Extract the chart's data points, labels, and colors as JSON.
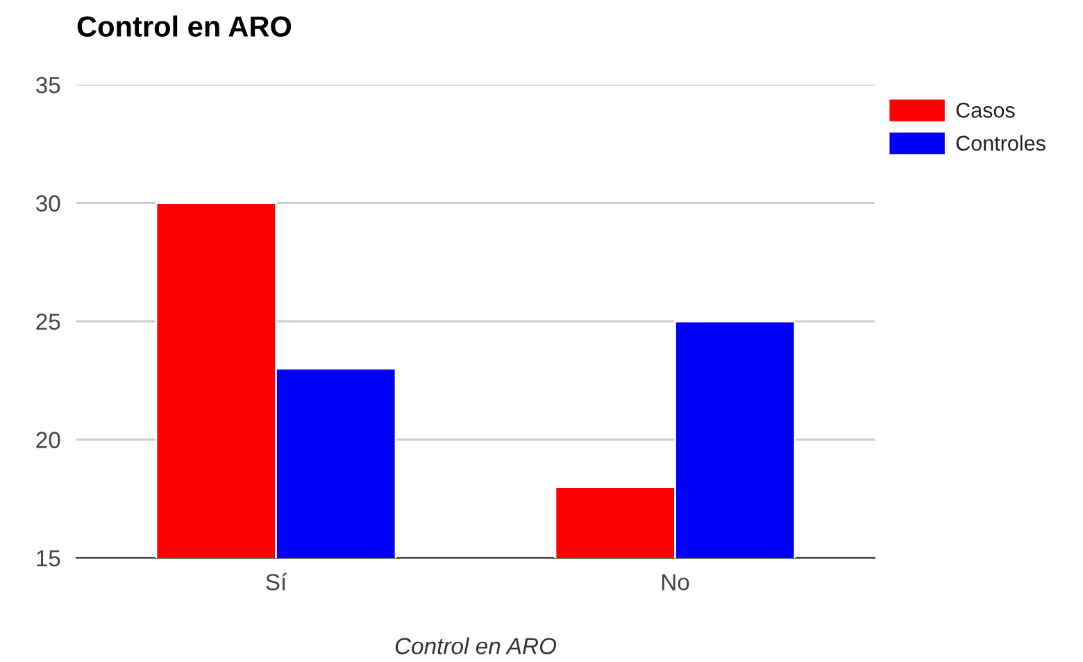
{
  "chart_data": {
    "type": "bar",
    "title": "Control en ARO",
    "xlabel": "Control en ARO",
    "categories": [
      "Sí",
      "No"
    ],
    "series": [
      {
        "name": "Casos",
        "color": "#ff0000",
        "values": [
          30,
          18
        ]
      },
      {
        "name": "Controles",
        "color": "#0000ff",
        "values": [
          23,
          25
        ]
      }
    ],
    "ylim": [
      15,
      35
    ],
    "yticks": [
      15,
      20,
      25,
      30,
      35
    ],
    "grid": "y",
    "legend": "top right"
  }
}
